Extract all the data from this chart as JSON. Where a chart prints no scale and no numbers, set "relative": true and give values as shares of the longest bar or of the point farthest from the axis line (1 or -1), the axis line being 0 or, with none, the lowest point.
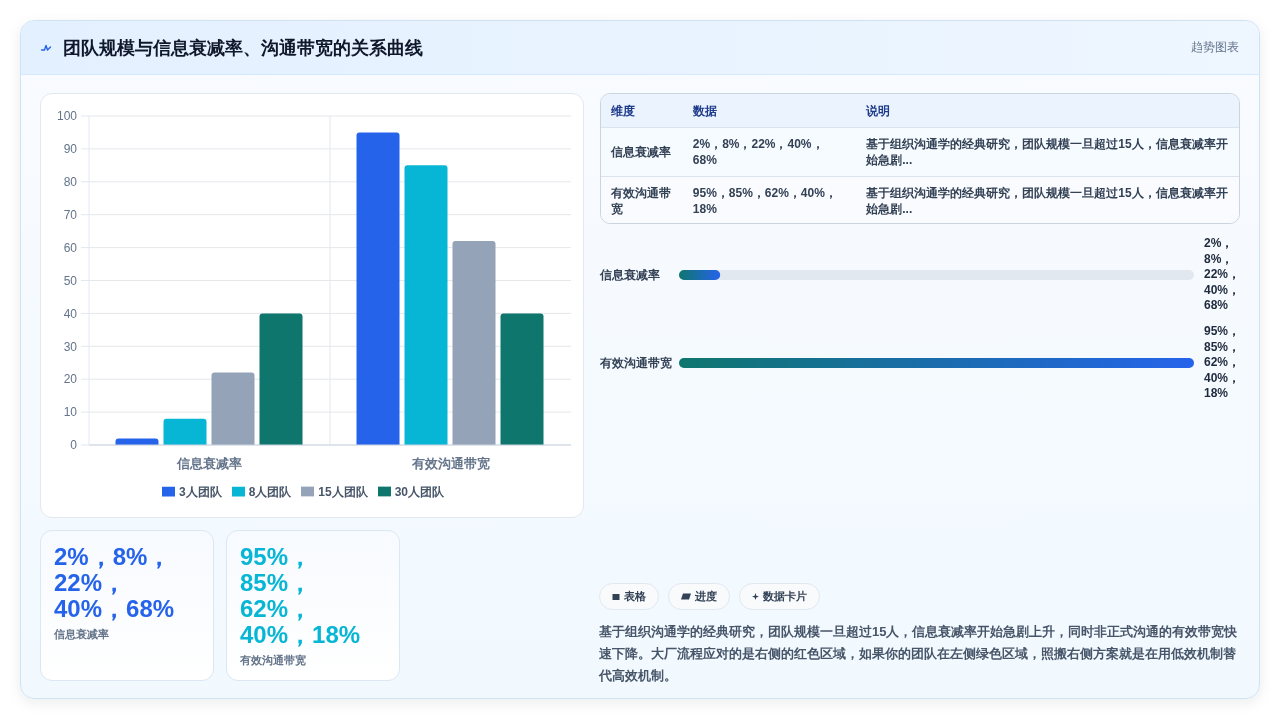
{
  "chart_data": [
    {
      "type": "other",
      "title": "团队规模与信息衰减率、沟通带宽的关系曲线",
      "subtitle": "趋势图表"
    },
    {
      "type": "bar",
      "categories": [
        "信息衰减率",
        "有效沟通带宽"
      ],
      "series": [
        {
          "name": "3人团队",
          "color": "#2563eb",
          "values": [
            2,
            95
          ]
        },
        {
          "name": "8人团队",
          "color": "#06b6d4",
          "values": [
            8,
            85
          ]
        },
        {
          "name": "15人团队",
          "color": "#94a3b8",
          "values": [
            22,
            62
          ]
        },
        {
          "name": "30人团队",
          "color": "#0f766e",
          "values": [
            40,
            40
          ]
        }
      ],
      "ylim": [
        0,
        100
      ],
      "yticks": [
        0,
        10,
        20,
        30,
        40,
        50,
        60,
        70,
        80,
        90,
        100
      ],
      "grid": true,
      "legend": "bottom"
    },
    {
      "type": "other",
      "annotations": [
        "维度",
        "数据",
        "说明",
        "信息衰减率",
        "2%，8%，22%，40%，68%",
        "基于组织沟通学的经典研究，团队规模一旦超过15人，信息衰减率开始急剧...",
        "有效沟通带宽",
        "95%，85%，62%，40%，18%",
        "基于组织沟通学的经典研究，团队规模一旦超过15人，信息衰减率开始急剧..."
      ]
    },
    {
      "type": "bar",
      "orientation": "horizontal",
      "relative": true,
      "categories": [
        "信息衰减率",
        "有效沟通带宽"
      ],
      "values": [
        0.08,
        1
      ],
      "color": "#2563eb",
      "annotations": [
        "2%，8%，22%，40%，68%",
        "95%，85%，62%，40%，18%"
      ]
    },
    {
      "type": "other",
      "annotations": [
        "2%，8%，22%，40%，68%",
        "信息衰减率",
        "95%，85%，62%，40%，18%",
        "有效沟通带宽"
      ],
      "colors": [
        "#2563eb",
        "#06b6d4"
      ]
    },
    {
      "type": "other",
      "annotations": [
        "表格",
        "进度",
        "数据卡片",
        "基于组织沟通学的经典研究，团队规模一旦超过15人，信息衰减率开始急剧上升，同时非正式沟通的有效带宽快速下降。大厂流程应对的是右侧的红色区域，如果你的团队在左侧绿色区域，照搬右侧方案就是在用低效机制替代高效机制。"
      ]
    }
  ]
}
